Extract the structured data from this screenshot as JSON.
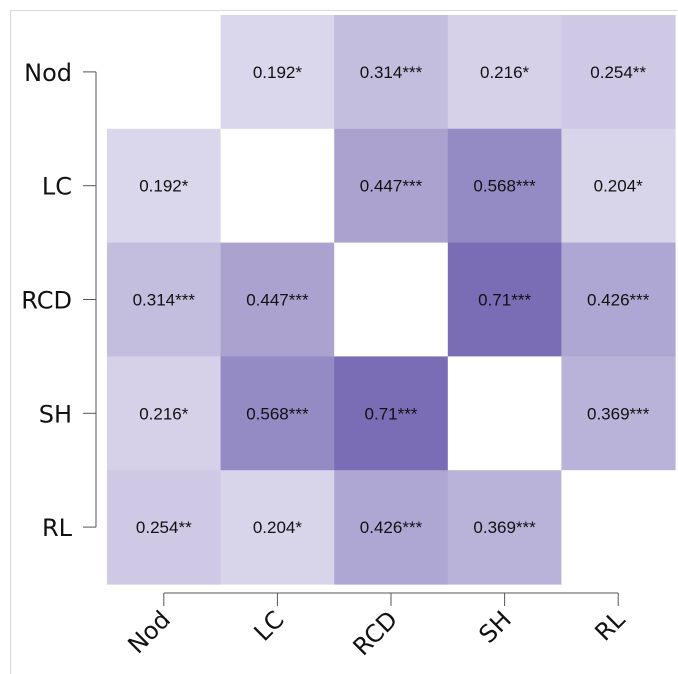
{
  "chart_data": {
    "type": "heatmap",
    "rows": [
      "Nod",
      "LC",
      "RCD",
      "SH",
      "RL"
    ],
    "columns": [
      "Nod",
      "LC",
      "RCD",
      "SH",
      "RL"
    ],
    "values": [
      [
        null,
        0.192,
        0.314,
        0.216,
        0.254
      ],
      [
        0.192,
        null,
        0.447,
        0.568,
        0.204
      ],
      [
        0.314,
        0.447,
        null,
        0.71,
        0.426
      ],
      [
        0.216,
        0.568,
        0.71,
        null,
        0.369
      ],
      [
        0.254,
        0.204,
        0.426,
        0.369,
        null
      ]
    ],
    "labels": [
      [
        "",
        "0.192*",
        "0.314***",
        "0.216*",
        "0.254**"
      ],
      [
        "0.192*",
        "",
        "0.447***",
        "0.568***",
        "0.204*"
      ],
      [
        "0.314***",
        "0.447***",
        "",
        "0.71***",
        "0.426***"
      ],
      [
        "0.216*",
        "0.568***",
        "0.71***",
        "",
        "0.369***"
      ],
      [
        "0.254**",
        "0.204*",
        "0.426***",
        "0.369***",
        ""
      ]
    ],
    "color_range": [
      0.192,
      0.71
    ],
    "color_low": "#dad6eb",
    "color_high": "#7a6db5",
    "diagonal_color": "#ffffff"
  }
}
